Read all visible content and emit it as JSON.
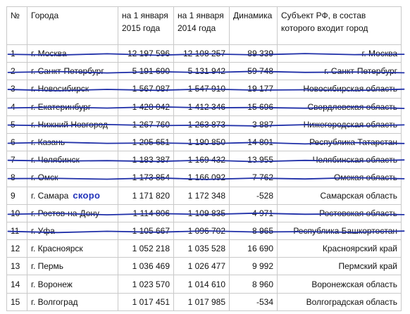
{
  "headers": {
    "num": "№",
    "city": "Города",
    "jan2015": "на 1 января 2015 года",
    "jan2014": "на 1 января 2014 года",
    "dynamics": "Динамика",
    "subject": "Субъект РФ, в состав которого входит город"
  },
  "rows": [
    {
      "num": "1",
      "city": "г. Москва",
      "p2015": "12 197 596",
      "p2014": "12 108 257",
      "dyn": "89 339",
      "subject": "г. Москва",
      "struck": true
    },
    {
      "num": "2",
      "city": "г. Санкт-Петербург",
      "p2015": "5 191 690",
      "p2014": "5 131 942",
      "dyn": "59 748",
      "subject": "г. Санкт-Петербург",
      "struck": true
    },
    {
      "num": "3",
      "city": "г. Новосибирск",
      "p2015": "1 567 087",
      "p2014": "1 547 910",
      "dyn": "19 177",
      "subject": "Новосибирская область",
      "struck": true
    },
    {
      "num": "4",
      "city": "г. Екатеринбург",
      "p2015": "1 428 042",
      "p2014": "1 412 346",
      "dyn": "15 696",
      "subject": "Свердловская область",
      "struck": true
    },
    {
      "num": "5",
      "city": "г. Нижний Новгород",
      "p2015": "1 267 760",
      "p2014": "1 263 873",
      "dyn": "3 887",
      "subject": "Нижегородская область",
      "struck": true
    },
    {
      "num": "6",
      "city": "г. Казань",
      "p2015": "1 205 651",
      "p2014": "1 190 850",
      "dyn": "14 801",
      "subject": "Республика Татарстан",
      "struck": true
    },
    {
      "num": "7",
      "city": "г. Челябинск",
      "p2015": "1 183 387",
      "p2014": "1 169 432",
      "dyn": "13 955",
      "subject": "Челябинская область",
      "struck": true
    },
    {
      "num": "8",
      "city": "г. Омск",
      "p2015": "1 173 854",
      "p2014": "1 166 092",
      "dyn": "7 762",
      "subject": "Омская область",
      "struck": true
    },
    {
      "num": "9",
      "city": "г. Самара",
      "p2015": "1 171 820",
      "p2014": "1 172 348",
      "dyn": "-528",
      "subject": "Самарская область",
      "struck": false
    },
    {
      "num": "10",
      "city": "г. Ростов-на-Дону",
      "p2015": "1 114 806",
      "p2014": "1 109 835",
      "dyn": "4 971",
      "subject": "Ростовская область",
      "struck": true
    },
    {
      "num": "11",
      "city": "г. Уфа",
      "p2015": "1 105 667",
      "p2014": "1 096 702",
      "dyn": "8 965",
      "subject": "Республика Башкортостан",
      "struck": true
    },
    {
      "num": "12",
      "city": "г. Красноярск",
      "p2015": "1 052 218",
      "p2014": "1 035 528",
      "dyn": "16 690",
      "subject": "Красноярский край",
      "struck": false
    },
    {
      "num": "13",
      "city": "г. Пермь",
      "p2015": "1 036 469",
      "p2014": "1 026 477",
      "dyn": "9 992",
      "subject": "Пермский край",
      "struck": false
    },
    {
      "num": "14",
      "city": "г. Воронеж",
      "p2015": "1 023 570",
      "p2014": "1 014 610",
      "dyn": "8 960",
      "subject": "Воронежская область",
      "struck": false
    },
    {
      "num": "15",
      "city": "г. Волгоград",
      "p2015": "1 017 451",
      "p2014": "1 017 985",
      "dyn": "-534",
      "subject": "Волгоградская область",
      "struck": false
    }
  ],
  "annotation": {
    "text": "скоро",
    "row": 8
  },
  "colors": {
    "ink": "#1f2fa8",
    "grid": "#c9c9c9"
  }
}
